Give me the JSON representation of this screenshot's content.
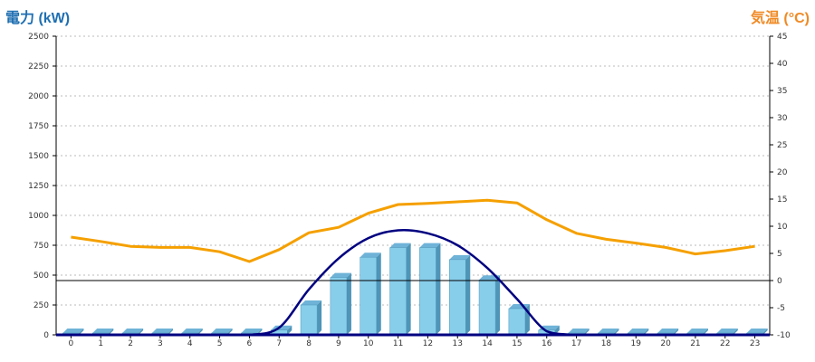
{
  "chart_data": {
    "type": "bar",
    "left_axis_title": "電力 (kW)",
    "right_axis_title": "気温 (°C)",
    "colors": {
      "left_title": "#1f6fb2",
      "right_title": "#f08a24",
      "bar_front": "#87ceeb",
      "bar_side": "#4f95b8",
      "bar_top": "#6fb3d8",
      "power_line": "#000080",
      "temp_line": "#f5a000",
      "grid": "#bbbbbb",
      "zero_line": "#000000"
    },
    "categories": [
      "0",
      "1",
      "2",
      "3",
      "4",
      "5",
      "6",
      "7",
      "8",
      "9",
      "10",
      "11",
      "12",
      "13",
      "14",
      "15",
      "16",
      "17",
      "18",
      "19",
      "20",
      "21",
      "22",
      "23"
    ],
    "left_axis": {
      "min": 0,
      "max": 2500,
      "ticks": [
        "0",
        "250",
        "500",
        "750",
        "1000",
        "1250",
        "1500",
        "1750",
        "2000",
        "2250",
        "2500"
      ]
    },
    "right_axis": {
      "min": -10,
      "max": 45,
      "ticks": [
        "-10",
        "-5",
        "0",
        "5",
        "10",
        "15",
        "20",
        "25",
        "30",
        "35",
        "40",
        "45"
      ]
    },
    "bar_series": {
      "values": [
        0,
        0,
        0,
        0,
        0,
        0,
        0,
        40,
        250,
        480,
        650,
        730,
        730,
        630,
        460,
        220,
        40,
        0,
        0,
        0,
        0,
        0,
        0,
        0
      ]
    },
    "power_curve": {
      "values": [
        0,
        0,
        0,
        0,
        0,
        0,
        0,
        60,
        380,
        640,
        810,
        875,
        850,
        750,
        560,
        300,
        30,
        0,
        0,
        0,
        0,
        0,
        0,
        0
      ]
    },
    "temperature": {
      "values": [
        8,
        7.2,
        6.3,
        6.1,
        6.1,
        5.3,
        3.5,
        5.7,
        8.8,
        9.8,
        12.4,
        14,
        14.2,
        14.5,
        14.8,
        14.3,
        11.2,
        8.7,
        7.6,
        6.9,
        6.1,
        4.9,
        5.5,
        6.3
      ]
    },
    "grid": true
  }
}
